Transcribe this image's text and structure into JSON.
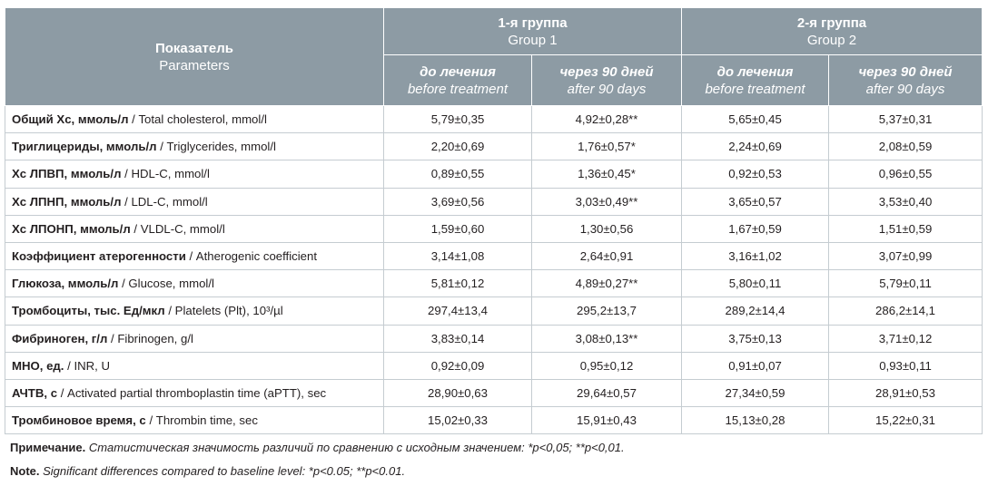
{
  "table": {
    "header": {
      "param_ru": "Показатель",
      "param_en": "Parameters",
      "groups": [
        {
          "ru": "1-я группа",
          "en": "Group 1"
        },
        {
          "ru": "2-я группа",
          "en": "Group 2"
        }
      ],
      "sub": [
        {
          "ru": "до лечения",
          "en": "before treatment"
        },
        {
          "ru": "через 90 дней",
          "en": "after 90 days"
        },
        {
          "ru": "до лечения",
          "en": "before treatment"
        },
        {
          "ru": "через 90 дней",
          "en": "after 90 days"
        }
      ]
    },
    "rows": [
      {
        "label_ru": "Общий Хс, ммоль/л",
        "label_en": "/ Total cholesterol, mmol/l",
        "values": [
          "5,79±0,35",
          "4,92±0,28**",
          "5,65±0,45",
          "5,37±0,31"
        ]
      },
      {
        "label_ru": "Триглицериды, ммоль/л",
        "label_en": "/ Triglycerides, mmol/l",
        "values": [
          "2,20±0,69",
          "1,76±0,57*",
          "2,24±0,69",
          "2,08±0,59"
        ]
      },
      {
        "label_ru": "Хс ЛПВП, ммоль/л",
        "label_en": "/ HDL-C, mmol/l",
        "values": [
          "0,89±0,55",
          "1,36±0,45*",
          "0,92±0,53",
          "0,96±0,55"
        ]
      },
      {
        "label_ru": "Хс ЛПНП, ммоль/л",
        "label_en": "/ LDL-C, mmol/l",
        "values": [
          "3,69±0,56",
          "3,03±0,49**",
          "3,65±0,57",
          "3,53±0,40"
        ]
      },
      {
        "label_ru": "Хс ЛПОНП, ммоль/л",
        "label_en": "/ VLDL-C, mmol/l",
        "values": [
          "1,59±0,60",
          "1,30±0,56",
          "1,67±0,59",
          "1,51±0,59"
        ]
      },
      {
        "label_ru": "Коэффициент атерогенности",
        "label_en": "/ Atherogenic coefficient",
        "values": [
          "3,14±1,08",
          "2,64±0,91",
          "3,16±1,02",
          "3,07±0,99"
        ]
      },
      {
        "label_ru": "Глюкоза, ммоль/л",
        "label_en": "/ Glucose, mmol/l",
        "values": [
          "5,81±0,12",
          "4,89±0,27**",
          "5,80±0,11",
          "5,79±0,11"
        ]
      },
      {
        "label_ru": "Тромбоциты, тыс. Ед/мкл",
        "label_en": "/ Platelets (Plt), 10³/µl",
        "values": [
          "297,4±13,4",
          "295,2±13,7",
          "289,2±14,4",
          "286,2±14,1"
        ]
      },
      {
        "label_ru": "Фибриноген, г/л",
        "label_en": "/ Fibrinogen, g/l",
        "values": [
          "3,83±0,14",
          "3,08±0,13**",
          "3,75±0,13",
          "3,71±0,12"
        ]
      },
      {
        "label_ru": "МНО, ед.",
        "label_en": "/ INR, U",
        "values": [
          "0,92±0,09",
          "0,95±0,12",
          "0,91±0,07",
          "0,93±0,11"
        ]
      },
      {
        "label_ru": "АЧТВ, с",
        "label_en": "/ Activated partial thromboplastin time (aPTT), sec",
        "values": [
          "28,90±0,63",
          "29,64±0,57",
          "27,34±0,59",
          "28,91±0,53"
        ]
      },
      {
        "label_ru": "Тромбиновое время, с",
        "label_en": "/ Thrombin time, sec",
        "values": [
          "15,02±0,33",
          "15,91±0,43",
          "15,13±0,28",
          "15,22±0,31"
        ]
      }
    ]
  },
  "notes": [
    {
      "label": "Примечание.",
      "text": "Статистическая значимость различий по сравнению с исходным значением: *p<0,05; **p<0,01."
    },
    {
      "label": "Note.",
      "text": "Significant differences compared to baseline level: *p<0.05; **p<0.01."
    }
  ]
}
